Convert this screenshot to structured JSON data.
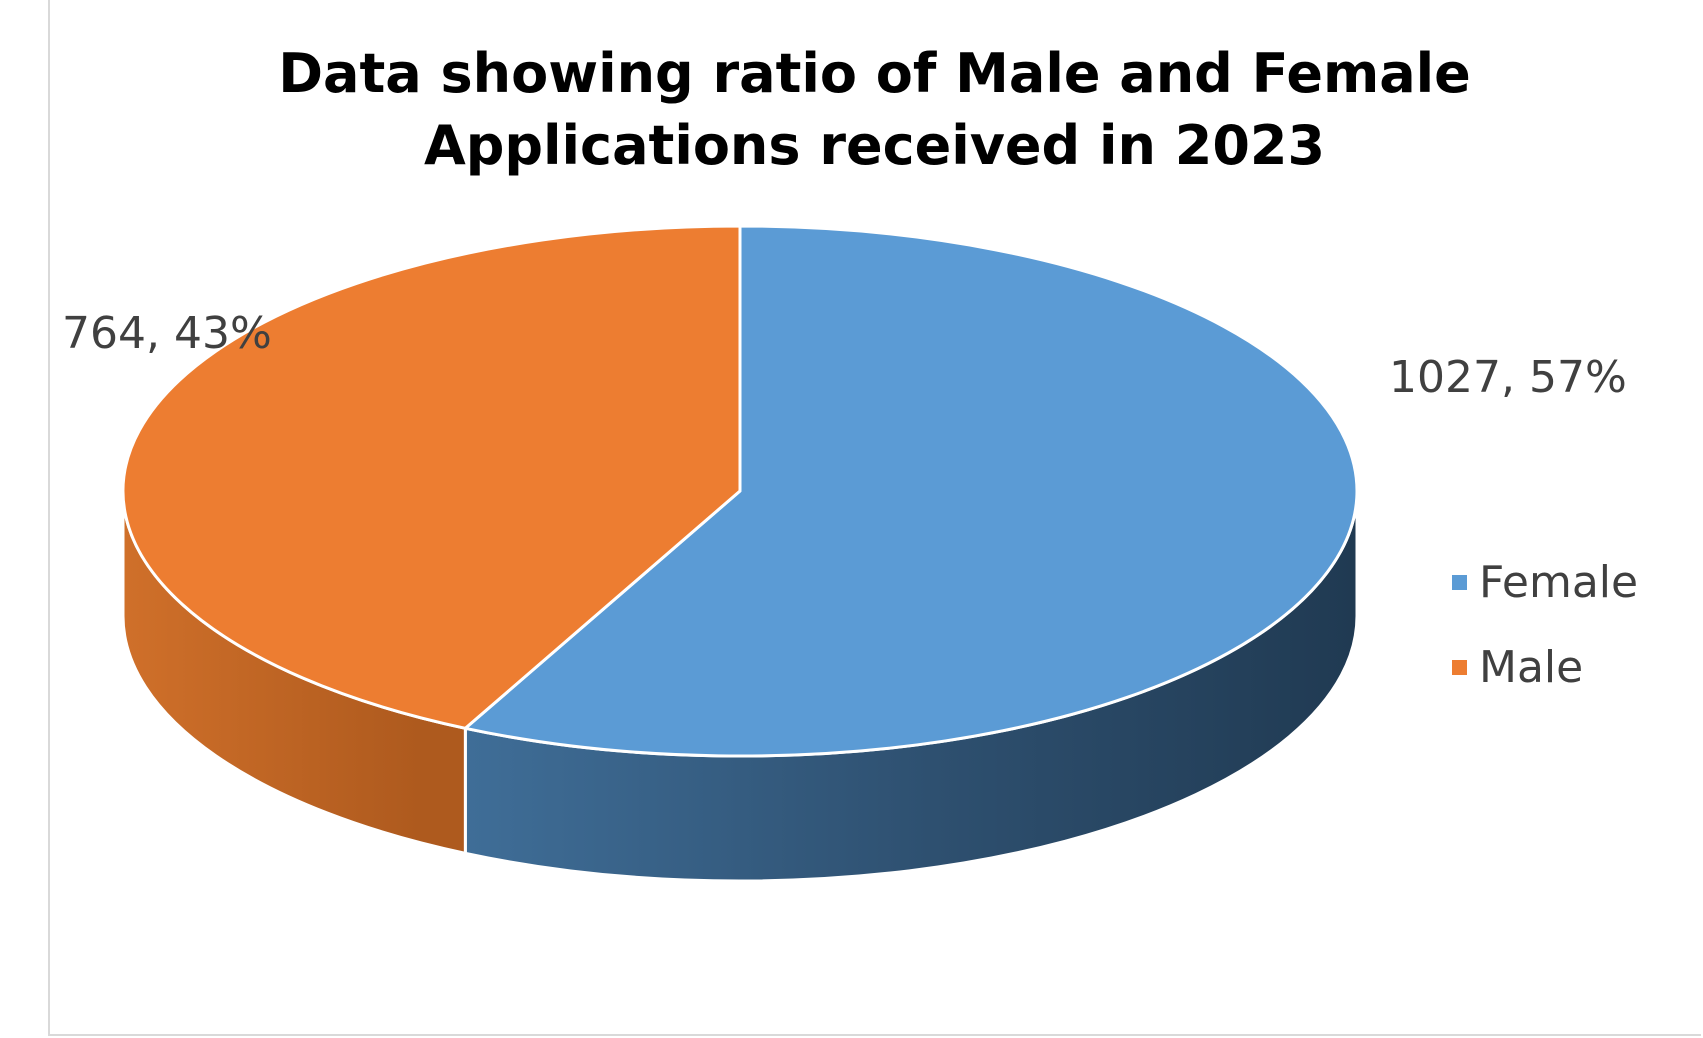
{
  "chart_data": {
    "type": "pie",
    "title": [
      "Data showing ratio of Male and Female",
      "Applications received in 2023"
    ],
    "categories": [
      "Female",
      "Male"
    ],
    "values": [
      1027,
      764
    ],
    "percentages": [
      57,
      43
    ],
    "data_labels": [
      "1027, 57%",
      "764, 43%"
    ],
    "colors": {
      "Female": "#5b9bd5",
      "Male": "#ed7d31"
    },
    "style": "3d",
    "legend": {
      "position": "right",
      "entries": [
        "Female",
        "Male"
      ]
    }
  }
}
